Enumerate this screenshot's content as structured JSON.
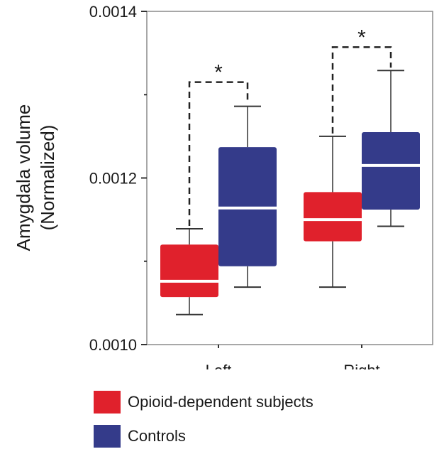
{
  "chart_data": {
    "type": "box",
    "ylabel_line1": "Amygdala volume",
    "ylabel_line2": "(Normalized)",
    "ylim": [
      0.001,
      0.0014
    ],
    "yticks": [
      {
        "value": 0.001,
        "label": "0.0010"
      },
      {
        "value": 0.0012,
        "label": "0.0012"
      },
      {
        "value": 0.0014,
        "label": "0.0014"
      }
    ],
    "yminor": [
      0.0011,
      0.0013
    ],
    "categories": [
      "Left",
      "Right"
    ],
    "series": [
      {
        "name": "Opioid-dependent subjects",
        "color": "#e0212c",
        "boxes": [
          {
            "whisker_low": 0.001036,
            "q1": 0.001057,
            "median": 0.001076,
            "q3": 0.00112,
            "whisker_high": 0.001139
          },
          {
            "whisker_low": 0.001069,
            "q1": 0.001124,
            "median": 0.00115,
            "q3": 0.001183,
            "whisker_high": 0.00125
          }
        ]
      },
      {
        "name": "Controls",
        "color": "#343b8a",
        "boxes": [
          {
            "whisker_low": 0.001069,
            "q1": 0.001094,
            "median": 0.001164,
            "q3": 0.001237,
            "whisker_high": 0.001286
          },
          {
            "whisker_low": 0.001142,
            "q1": 0.001162,
            "median": 0.001215,
            "q3": 0.001255,
            "whisker_high": 0.001329
          }
        ]
      }
    ],
    "significance": [
      {
        "category": "Left",
        "label": "*",
        "level": 0.001315
      },
      {
        "category": "Right",
        "label": "*",
        "level": 0.001357
      }
    ],
    "legend_position": "bottom"
  },
  "legend": {
    "items": [
      {
        "label": "Opioid-dependent subjects",
        "color": "#e0212c"
      },
      {
        "label": "Controls",
        "color": "#343b8a"
      }
    ]
  }
}
